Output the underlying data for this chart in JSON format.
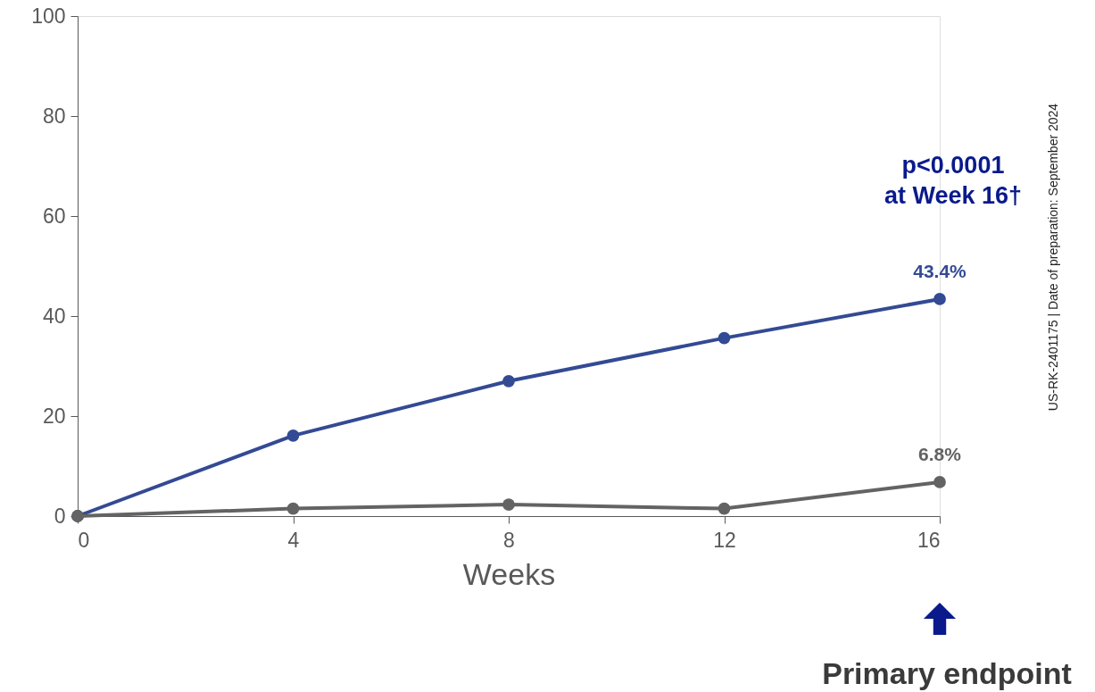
{
  "chart_data": {
    "type": "line",
    "xlabel": "Weeks",
    "x": [
      0,
      4,
      8,
      12,
      16
    ],
    "series": [
      {
        "color": "#334a94",
        "values": [
          0,
          16.1,
          27,
          35.6,
          43.4
        ],
        "value_labels": [
          null,
          null,
          null,
          null,
          "43.4%"
        ]
      },
      {
        "color": "#636363",
        "values": [
          0,
          1.5,
          2.3,
          1.5,
          6.8
        ],
        "value_labels": [
          null,
          null,
          null,
          null,
          "6.8%"
        ]
      }
    ],
    "xlim": [
      0,
      16
    ],
    "xticks": [
      0,
      4,
      8,
      12,
      16
    ],
    "ylim": [
      0,
      100
    ],
    "yticks": [
      0,
      20,
      40,
      60,
      80,
      100
    ],
    "grid": false,
    "marker": "circle",
    "line_style": "solid",
    "annotations": [
      "p<0.0001\nat Week 16†",
      "Primary endpoint",
      "US-RK-2401175 | Date of preparation: September 2024"
    ]
  }
}
